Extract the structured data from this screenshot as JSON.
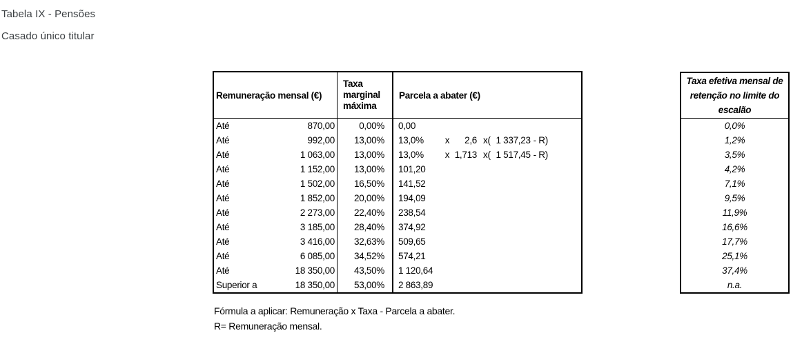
{
  "page": {
    "title": "Tabela IX - Pensões",
    "subtitle": "Casado único titular"
  },
  "main_table": {
    "header": {
      "col1": "Remuneração mensal (€)",
      "col2": "Taxa marginal máxima",
      "col3": "Parcela a abater (€)"
    },
    "rows": [
      {
        "prefix": "Até",
        "limit": "870,00",
        "rate": "0,00%",
        "parcel": "0,00"
      },
      {
        "prefix": "Até",
        "limit": "992,00",
        "rate": "13,00%",
        "parcel": "13,0%",
        "formula": {
          "mult": "x",
          "factor": "2,6",
          "open": "x(",
          "amount": "1 337,23",
          "close": "- R)"
        }
      },
      {
        "prefix": "Até",
        "limit": "1 063,00",
        "rate": "13,00%",
        "parcel": "13,0%",
        "formula": {
          "mult": "x",
          "factor": "1,713",
          "open": "x(",
          "amount": "1 517,45",
          "close": "- R)"
        }
      },
      {
        "prefix": "Até",
        "limit": "1 152,00",
        "rate": "13,00%",
        "parcel": "101,20"
      },
      {
        "prefix": "Até",
        "limit": "1 502,00",
        "rate": "16,50%",
        "parcel": "141,52"
      },
      {
        "prefix": "Até",
        "limit": "1 852,00",
        "rate": "20,00%",
        "parcel": "194,09"
      },
      {
        "prefix": "Até",
        "limit": "2 273,00",
        "rate": "22,40%",
        "parcel": "238,54"
      },
      {
        "prefix": "Até",
        "limit": "3 185,00",
        "rate": "28,40%",
        "parcel": "374,92"
      },
      {
        "prefix": "Até",
        "limit": "3 416,00",
        "rate": "32,63%",
        "parcel": "509,65"
      },
      {
        "prefix": "Até",
        "limit": "6 085,00",
        "rate": "34,52%",
        "parcel": "574,21"
      },
      {
        "prefix": "Até",
        "limit": "18 350,00",
        "rate": "43,50%",
        "parcel": "1 120,64"
      },
      {
        "prefix": "Superior a",
        "limit": "18 350,00",
        "rate": "53,00%",
        "parcel": "2 863,89"
      }
    ]
  },
  "effective_rate_table": {
    "header": "Taxa efetiva mensal de retenção no limite do escalão",
    "values": [
      "0,0%",
      "1,2%",
      "3,5%",
      "4,2%",
      "7,1%",
      "9,5%",
      "11,9%",
      "16,6%",
      "17,7%",
      "25,1%",
      "37,4%",
      "n.a."
    ]
  },
  "footnotes": {
    "formula": "Fórmula a aplicar: Remuneração x Taxa - Parcela a abater.",
    "r_definition": "R= Remuneração mensal."
  }
}
